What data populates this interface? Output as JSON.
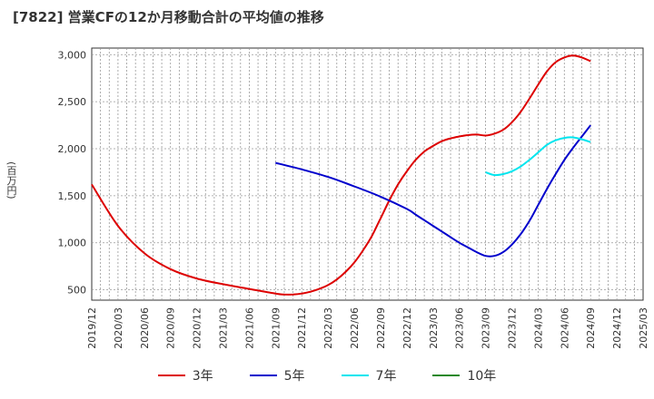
{
  "title": "[7822]  営業CFの12か月移動合計の平均値の推移",
  "chart_data": {
    "type": "line",
    "title": "[7822]  営業CFの12か月移動合計の平均値の推移",
    "xlabel": "",
    "ylabel": "(百万円)",
    "ylim": [
      390,
      3070
    ],
    "y_ticks": [
      500,
      1000,
      1500,
      2000,
      2500,
      3000
    ],
    "y_tick_labels": [
      "500",
      "1,000",
      "1,500",
      "2,000",
      "2,500",
      "3,000"
    ],
    "x_start": "2019/12",
    "x_end": "2025/03",
    "x_tick_labels": [
      "2019/12",
      "2020/03",
      "2020/06",
      "2020/09",
      "2020/12",
      "2021/03",
      "2021/06",
      "2021/09",
      "2021/12",
      "2022/03",
      "2022/06",
      "2022/09",
      "2022/12",
      "2023/03",
      "2023/06",
      "2023/09",
      "2023/12",
      "2024/03",
      "2024/06",
      "2024/09",
      "2024/12",
      "2025/03"
    ],
    "grid": true,
    "legend_position": "bottom",
    "series": [
      {
        "name": "3年",
        "color": "#dd0000",
        "x": [
          "2019/12",
          "2020/03",
          "2020/06",
          "2020/09",
          "2020/12",
          "2021/03",
          "2021/06",
          "2021/09",
          "2021/10",
          "2021/11",
          "2021/12",
          "2022/01",
          "2022/02",
          "2022/03",
          "2022/04",
          "2022/05",
          "2022/06",
          "2022/07",
          "2022/08",
          "2022/09",
          "2022/10",
          "2022/11",
          "2022/12",
          "2023/01",
          "2023/02",
          "2023/03",
          "2023/04",
          "2023/05",
          "2023/06",
          "2023/07",
          "2023/08",
          "2023/09",
          "2023/10",
          "2023/11",
          "2023/12",
          "2024/01",
          "2024/02",
          "2024/03",
          "2024/04",
          "2024/05",
          "2024/06",
          "2024/07",
          "2024/08",
          "2024/09"
        ],
        "values": [
          1620,
          1180,
          890,
          720,
          620,
          560,
          510,
          460,
          450,
          450,
          460,
          480,
          510,
          550,
          610,
          690,
          790,
          920,
          1070,
          1260,
          1450,
          1620,
          1760,
          1880,
          1970,
          2030,
          2080,
          2110,
          2130,
          2145,
          2150,
          2140,
          2160,
          2200,
          2280,
          2390,
          2530,
          2680,
          2820,
          2920,
          2970,
          2990,
          2970,
          2930
        ]
      },
      {
        "name": "5年",
        "color": "#0000cc",
        "x": [
          "2021/09",
          "2021/12",
          "2022/03",
          "2022/06",
          "2022/09",
          "2022/12",
          "2023/01",
          "2023/02",
          "2023/03",
          "2023/04",
          "2023/05",
          "2023/06",
          "2023/07",
          "2023/08",
          "2023/09",
          "2023/10",
          "2023/11",
          "2023/12",
          "2024/01",
          "2024/02",
          "2024/03",
          "2024/04",
          "2024/05",
          "2024/06",
          "2024/07",
          "2024/08",
          "2024/09"
        ],
        "values": [
          1850,
          1780,
          1700,
          1600,
          1490,
          1360,
          1300,
          1240,
          1180,
          1120,
          1060,
          1000,
          950,
          900,
          860,
          860,
          900,
          980,
          1090,
          1230,
          1400,
          1570,
          1730,
          1880,
          2010,
          2130,
          2250
        ]
      },
      {
        "name": "7年",
        "color": "#00e5ee",
        "x": [
          "2023/09",
          "2023/10",
          "2023/11",
          "2023/12",
          "2024/01",
          "2024/02",
          "2024/03",
          "2024/04",
          "2024/05",
          "2024/06",
          "2024/07",
          "2024/08",
          "2024/09"
        ],
        "values": [
          1750,
          1720,
          1730,
          1760,
          1810,
          1880,
          1960,
          2040,
          2090,
          2115,
          2120,
          2100,
          2070
        ]
      },
      {
        "name": "10年",
        "color": "#228822",
        "x": [],
        "values": []
      }
    ]
  }
}
